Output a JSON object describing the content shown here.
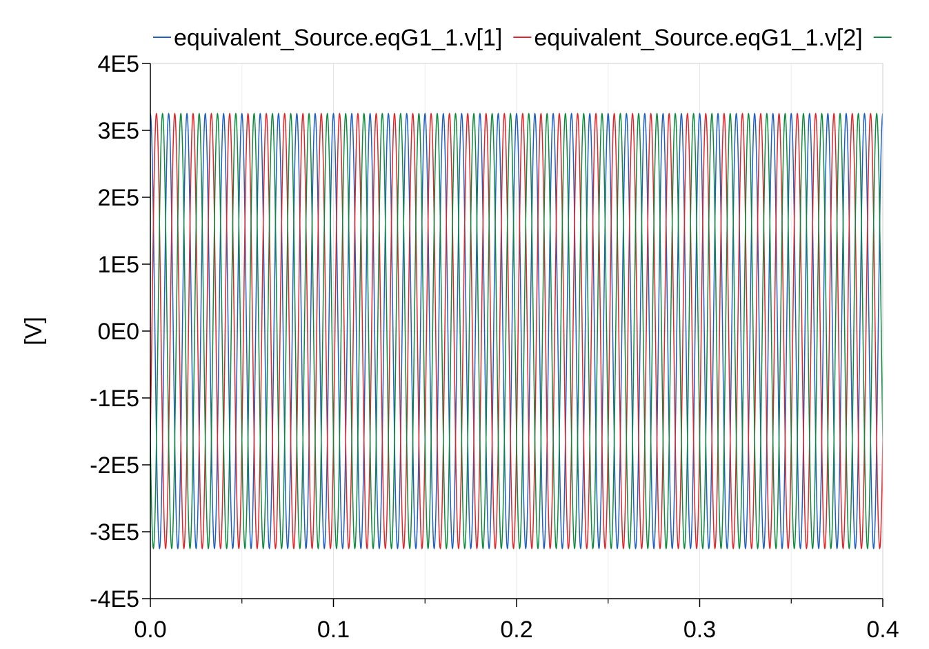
{
  "chart_data": {
    "type": "line",
    "title": "",
    "xlabel": "",
    "ylabel": "[V]",
    "xlim": [
      0.0,
      0.4
    ],
    "ylim": [
      -400000,
      400000
    ],
    "x_ticks": [
      0.0,
      0.1,
      0.2,
      0.3,
      0.4
    ],
    "x_tick_labels": [
      "0.0",
      "0.1",
      "0.2",
      "0.3",
      "0.4"
    ],
    "y_ticks": [
      400000,
      300000,
      200000,
      100000,
      0,
      -100000,
      -200000,
      -300000,
      -400000
    ],
    "y_tick_labels": [
      "4E5",
      "3E5",
      "2E5",
      "1E5",
      "0E0",
      "-1E5",
      "-2E5",
      "-3E5",
      "-4E5"
    ],
    "grid": true,
    "legend_position": "top",
    "series": [
      {
        "name": "equivalent_Source.eqG1_1.v[1]",
        "color": "#1f5fc4",
        "amplitude": 325000,
        "frequency_hz": 100,
        "phase_deg": 90
      },
      {
        "name": "equivalent_Source.eqG1_1.v[2]",
        "color": "#e0262b",
        "amplitude": 325000,
        "frequency_hz": 100,
        "phase_deg": -30
      },
      {
        "name": "",
        "color": "#0e8a3e",
        "amplitude": 325000,
        "frequency_hz": 100,
        "phase_deg": 210
      }
    ]
  }
}
